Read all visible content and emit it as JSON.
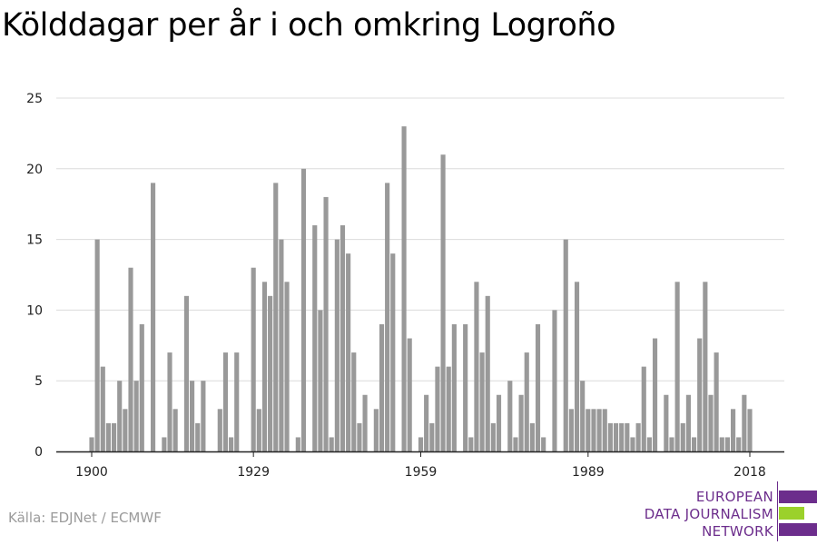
{
  "chart_data": {
    "type": "bar",
    "title": "Kölddagar per år i och omkring Logroño",
    "x_start": 1900,
    "x_end": 2018,
    "x_ticks": [
      "1900",
      "1929",
      "1959",
      "1989",
      "2018"
    ],
    "y_ticks": [
      "0",
      "5",
      "10",
      "15",
      "20",
      "25"
    ],
    "ylim": [
      0,
      25
    ],
    "grid": true,
    "bar_color": "#999999",
    "values": [
      1,
      15,
      6,
      2,
      2,
      5,
      3,
      13,
      5,
      9,
      0,
      19,
      0,
      1,
      7,
      3,
      0,
      11,
      5,
      2,
      5,
      0,
      0,
      3,
      7,
      1,
      7,
      0,
      0,
      13,
      3,
      12,
      11,
      19,
      15,
      12,
      0,
      1,
      20,
      0,
      16,
      10,
      18,
      1,
      15,
      16,
      14,
      7,
      2,
      4,
      0,
      3,
      9,
      19,
      14,
      0,
      23,
      8,
      0,
      1,
      4,
      2,
      6,
      21,
      6,
      9,
      0,
      9,
      1,
      12,
      7,
      11,
      2,
      4,
      0,
      5,
      1,
      4,
      7,
      2,
      9,
      1,
      0,
      10,
      0,
      15,
      3,
      12,
      5,
      3,
      3,
      3,
      3,
      2,
      2,
      2,
      2,
      1,
      2,
      6,
      1,
      8,
      0,
      4,
      1,
      12,
      2,
      4,
      1,
      8,
      12,
      4,
      7,
      1,
      1,
      3,
      1,
      4,
      3
    ]
  },
  "source": "Källa: EDJNet / ECMWF",
  "logo": {
    "line1": "EUROPEAN",
    "line2": "DATA JOURNALISM",
    "line3": "NETWORK",
    "purple": "#6c2d8c",
    "green": "#9bd12b"
  }
}
